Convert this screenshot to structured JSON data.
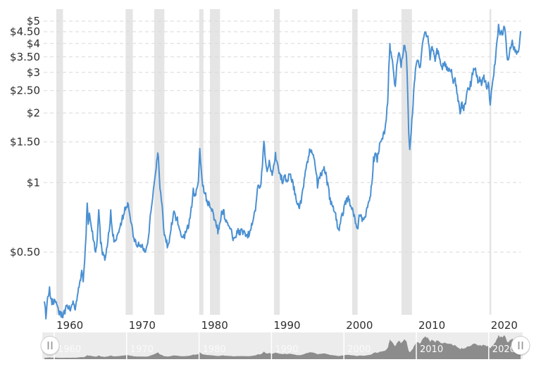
{
  "page": {
    "background": "#ffffff"
  },
  "colors": {
    "line": "#4a90d2",
    "recession_band": "#e5e5e5",
    "gridline": "#d9d9d9",
    "axis_text": "#2e2e2e",
    "navigator_background": "#ececec",
    "navigator_area": "#8c8c8c",
    "navigator_decade_line": "#ffffff",
    "navigator_label": "#fafafa",
    "handle_fill": "#ffffff",
    "handle_border": "#cccccc",
    "handle_glyph": "#9a9a9a"
  },
  "chart_data": {
    "type": "line",
    "title": "",
    "xlabel": "",
    "ylabel": "",
    "y_axis": {
      "scale": "log",
      "range": [
        0.26,
        5.3
      ],
      "tick_values": [
        5,
        4.5,
        4,
        3.5,
        3,
        2.5,
        2,
        1.5,
        1,
        0.5
      ],
      "tick_labels": [
        "$5",
        "$4.50",
        "$4",
        "$3.50",
        "$3",
        "$2.50",
        "$2",
        "$1.50",
        "$1",
        "$0.50"
      ]
    },
    "x_axis": {
      "range": [
        1958.2,
        2024.6
      ],
      "tick_values": [
        1960,
        1970,
        1980,
        1990,
        2000,
        2010,
        2020
      ],
      "tick_labels": [
        "1960",
        "1970",
        "1980",
        "1990",
        "2000",
        "2010",
        "2020"
      ]
    },
    "grid": true,
    "legend": "none",
    "recession_bands": [
      [
        1960.28,
        1961.2
      ],
      [
        1969.85,
        1970.85
      ],
      [
        1973.8,
        1975.2
      ],
      [
        1980.02,
        1980.6
      ],
      [
        1981.5,
        1982.9
      ],
      [
        1990.35,
        1991.15
      ],
      [
        2001.15,
        2001.9
      ],
      [
        2007.95,
        2009.4
      ],
      [
        2020.1,
        2020.35
      ]
    ],
    "series": [
      {
        "name": "price",
        "unit": "USD",
        "points": [
          [
            1958.65,
            0.3
          ],
          [
            1958.85,
            0.265
          ],
          [
            1959.1,
            0.32
          ],
          [
            1959.35,
            0.345
          ],
          [
            1959.6,
            0.31
          ],
          [
            1959.85,
            0.3
          ],
          [
            1960.1,
            0.31
          ],
          [
            1960.35,
            0.29
          ],
          [
            1960.6,
            0.275
          ],
          [
            1960.85,
            0.27
          ],
          [
            1961.1,
            0.265
          ],
          [
            1961.4,
            0.275
          ],
          [
            1961.7,
            0.29
          ],
          [
            1962.0,
            0.285
          ],
          [
            1962.3,
            0.28
          ],
          [
            1962.6,
            0.3
          ],
          [
            1962.9,
            0.285
          ],
          [
            1963.2,
            0.33
          ],
          [
            1963.5,
            0.37
          ],
          [
            1963.8,
            0.41
          ],
          [
            1964.0,
            0.385
          ],
          [
            1964.2,
            0.46
          ],
          [
            1964.4,
            0.6
          ],
          [
            1964.55,
            0.81
          ],
          [
            1964.7,
            0.68
          ],
          [
            1964.85,
            0.74
          ],
          [
            1965.0,
            0.66
          ],
          [
            1965.2,
            0.62
          ],
          [
            1965.45,
            0.55
          ],
          [
            1965.7,
            0.5
          ],
          [
            1965.95,
            0.57
          ],
          [
            1966.15,
            0.76
          ],
          [
            1966.4,
            0.56
          ],
          [
            1966.65,
            0.5
          ],
          [
            1966.9,
            0.47
          ],
          [
            1967.15,
            0.49
          ],
          [
            1967.4,
            0.56
          ],
          [
            1967.6,
            0.63
          ],
          [
            1967.8,
            0.74
          ],
          [
            1968.0,
            0.64
          ],
          [
            1968.25,
            0.545
          ],
          [
            1968.5,
            0.56
          ],
          [
            1968.75,
            0.59
          ],
          [
            1969.0,
            0.63
          ],
          [
            1969.25,
            0.67
          ],
          [
            1969.5,
            0.72
          ],
          [
            1969.75,
            0.77
          ],
          [
            1970.0,
            0.8
          ],
          [
            1970.15,
            0.82
          ],
          [
            1970.4,
            0.74
          ],
          [
            1970.65,
            0.66
          ],
          [
            1970.9,
            0.59
          ],
          [
            1971.15,
            0.55
          ],
          [
            1971.4,
            0.535
          ],
          [
            1971.65,
            0.56
          ],
          [
            1971.9,
            0.52
          ],
          [
            1972.15,
            0.545
          ],
          [
            1972.4,
            0.51
          ],
          [
            1972.65,
            0.52
          ],
          [
            1972.9,
            0.555
          ],
          [
            1973.1,
            0.62
          ],
          [
            1973.35,
            0.76
          ],
          [
            1973.6,
            0.88
          ],
          [
            1973.8,
            0.97
          ],
          [
            1974.0,
            1.1
          ],
          [
            1974.15,
            1.25
          ],
          [
            1974.3,
            1.38
          ],
          [
            1974.45,
            1.15
          ],
          [
            1974.6,
            0.97
          ],
          [
            1974.8,
            0.85
          ],
          [
            1975.0,
            0.7
          ],
          [
            1975.2,
            0.6
          ],
          [
            1975.45,
            0.555
          ],
          [
            1975.7,
            0.53
          ],
          [
            1975.95,
            0.57
          ],
          [
            1976.2,
            0.65
          ],
          [
            1976.45,
            0.72
          ],
          [
            1976.6,
            0.75
          ],
          [
            1976.8,
            0.68
          ],
          [
            1977.0,
            0.7
          ],
          [
            1977.25,
            0.64
          ],
          [
            1977.5,
            0.6
          ],
          [
            1977.75,
            0.575
          ],
          [
            1978.0,
            0.59
          ],
          [
            1978.25,
            0.625
          ],
          [
            1978.5,
            0.64
          ],
          [
            1978.75,
            0.7
          ],
          [
            1979.0,
            0.8
          ],
          [
            1979.2,
            0.92
          ],
          [
            1979.45,
            0.88
          ],
          [
            1979.7,
            0.93
          ],
          [
            1979.9,
            1.02
          ],
          [
            1980.1,
            1.38
          ],
          [
            1980.3,
            1.1
          ],
          [
            1980.5,
            0.96
          ],
          [
            1980.75,
            0.92
          ],
          [
            1981.0,
            0.85
          ],
          [
            1981.25,
            0.82
          ],
          [
            1981.5,
            0.79
          ],
          [
            1981.75,
            0.77
          ],
          [
            1982.0,
            0.72
          ],
          [
            1982.3,
            0.67
          ],
          [
            1982.6,
            0.62
          ],
          [
            1982.9,
            0.66
          ],
          [
            1983.1,
            0.73
          ],
          [
            1983.35,
            0.76
          ],
          [
            1983.6,
            0.7
          ],
          [
            1983.85,
            0.66
          ],
          [
            1984.1,
            0.64
          ],
          [
            1984.4,
            0.62
          ],
          [
            1984.7,
            0.57
          ],
          [
            1985.0,
            0.59
          ],
          [
            1985.3,
            0.62
          ],
          [
            1985.6,
            0.6
          ],
          [
            1985.9,
            0.63
          ],
          [
            1986.2,
            0.6
          ],
          [
            1986.5,
            0.58
          ],
          [
            1986.8,
            0.595
          ],
          [
            1987.1,
            0.62
          ],
          [
            1987.4,
            0.67
          ],
          [
            1987.7,
            0.74
          ],
          [
            1987.95,
            0.86
          ],
          [
            1988.15,
            1.0
          ],
          [
            1988.35,
            0.94
          ],
          [
            1988.55,
            1.02
          ],
          [
            1988.75,
            1.16
          ],
          [
            1988.95,
            1.52
          ],
          [
            1989.1,
            1.32
          ],
          [
            1989.3,
            1.18
          ],
          [
            1989.5,
            1.12
          ],
          [
            1989.7,
            1.26
          ],
          [
            1989.9,
            1.14
          ],
          [
            1990.1,
            1.08
          ],
          [
            1990.3,
            1.16
          ],
          [
            1990.55,
            1.32
          ],
          [
            1990.8,
            1.22
          ],
          [
            1991.05,
            1.1
          ],
          [
            1991.3,
            1.06
          ],
          [
            1991.55,
            1.0
          ],
          [
            1991.8,
            1.06
          ],
          [
            1992.05,
            1.02
          ],
          [
            1992.3,
            1.04
          ],
          [
            1992.55,
            1.12
          ],
          [
            1992.8,
            1.03
          ],
          [
            1993.05,
            0.96
          ],
          [
            1993.3,
            0.87
          ],
          [
            1993.55,
            0.82
          ],
          [
            1993.85,
            0.77
          ],
          [
            1994.1,
            0.84
          ],
          [
            1994.35,
            0.94
          ],
          [
            1994.6,
            1.05
          ],
          [
            1994.85,
            1.18
          ],
          [
            1995.1,
            1.3
          ],
          [
            1995.35,
            1.4
          ],
          [
            1995.6,
            1.36
          ],
          [
            1995.85,
            1.28
          ],
          [
            1996.1,
            1.16
          ],
          [
            1996.35,
            0.98
          ],
          [
            1996.6,
            1.04
          ],
          [
            1996.85,
            1.08
          ],
          [
            1997.1,
            1.12
          ],
          [
            1997.35,
            1.14
          ],
          [
            1997.6,
            1.04
          ],
          [
            1997.85,
            0.94
          ],
          [
            1998.1,
            0.84
          ],
          [
            1998.35,
            0.8
          ],
          [
            1998.6,
            0.76
          ],
          [
            1998.85,
            0.72
          ],
          [
            1999.1,
            0.65
          ],
          [
            1999.35,
            0.63
          ],
          [
            1999.6,
            0.68
          ],
          [
            1999.85,
            0.74
          ],
          [
            2000.1,
            0.8
          ],
          [
            2000.35,
            0.83
          ],
          [
            2000.6,
            0.85
          ],
          [
            2000.85,
            0.82
          ],
          [
            2001.1,
            0.78
          ],
          [
            2001.35,
            0.72
          ],
          [
            2001.6,
            0.67
          ],
          [
            2001.85,
            0.625
          ],
          [
            2002.1,
            0.7
          ],
          [
            2002.35,
            0.73
          ],
          [
            2002.6,
            0.68
          ],
          [
            2002.85,
            0.71
          ],
          [
            2003.1,
            0.75
          ],
          [
            2003.35,
            0.79
          ],
          [
            2003.6,
            0.85
          ],
          [
            2003.85,
            0.97
          ],
          [
            2004.1,
            1.25
          ],
          [
            2004.35,
            1.32
          ],
          [
            2004.6,
            1.25
          ],
          [
            2004.85,
            1.42
          ],
          [
            2005.1,
            1.48
          ],
          [
            2005.35,
            1.55
          ],
          [
            2005.6,
            1.68
          ],
          [
            2005.85,
            1.9
          ],
          [
            2006.05,
            2.25
          ],
          [
            2006.2,
            3.05
          ],
          [
            2006.35,
            3.95
          ],
          [
            2006.5,
            3.62
          ],
          [
            2006.7,
            3.45
          ],
          [
            2006.9,
            2.95
          ],
          [
            2007.1,
            2.56
          ],
          [
            2007.3,
            3.12
          ],
          [
            2007.5,
            3.62
          ],
          [
            2007.7,
            3.55
          ],
          [
            2007.9,
            3.25
          ],
          [
            2008.1,
            3.55
          ],
          [
            2008.3,
            3.92
          ],
          [
            2008.5,
            3.78
          ],
          [
            2008.65,
            3.4
          ],
          [
            2008.8,
            2.5
          ],
          [
            2008.95,
            1.65
          ],
          [
            2009.1,
            1.38
          ],
          [
            2009.3,
            1.7
          ],
          [
            2009.55,
            2.2
          ],
          [
            2009.8,
            2.85
          ],
          [
            2010.05,
            3.35
          ],
          [
            2010.25,
            3.45
          ],
          [
            2010.45,
            3.05
          ],
          [
            2010.65,
            3.4
          ],
          [
            2010.85,
            3.85
          ],
          [
            2011.05,
            4.35
          ],
          [
            2011.2,
            4.6
          ],
          [
            2011.4,
            4.25
          ],
          [
            2011.6,
            4.4
          ],
          [
            2011.75,
            3.95
          ],
          [
            2011.9,
            3.45
          ],
          [
            2012.1,
            3.75
          ],
          [
            2012.35,
            3.82
          ],
          [
            2012.6,
            3.45
          ],
          [
            2012.85,
            3.7
          ],
          [
            2013.1,
            3.65
          ],
          [
            2013.35,
            3.3
          ],
          [
            2013.6,
            3.15
          ],
          [
            2013.85,
            3.28
          ],
          [
            2014.1,
            3.2
          ],
          [
            2014.35,
            3.02
          ],
          [
            2014.6,
            3.12
          ],
          [
            2014.85,
            3.0
          ],
          [
            2015.1,
            2.68
          ],
          [
            2015.35,
            2.78
          ],
          [
            2015.6,
            2.46
          ],
          [
            2015.85,
            2.24
          ],
          [
            2016.05,
            2.02
          ],
          [
            2016.3,
            2.18
          ],
          [
            2016.55,
            2.12
          ],
          [
            2016.8,
            2.22
          ],
          [
            2017.05,
            2.6
          ],
          [
            2017.3,
            2.56
          ],
          [
            2017.55,
            2.7
          ],
          [
            2017.8,
            2.98
          ],
          [
            2018.0,
            3.2
          ],
          [
            2018.25,
            3.05
          ],
          [
            2018.5,
            2.72
          ],
          [
            2018.75,
            2.78
          ],
          [
            2019.0,
            2.66
          ],
          [
            2019.25,
            2.92
          ],
          [
            2019.5,
            2.7
          ],
          [
            2019.75,
            2.6
          ],
          [
            2019.95,
            2.8
          ],
          [
            2020.2,
            2.17
          ],
          [
            2020.45,
            2.55
          ],
          [
            2020.7,
            2.95
          ],
          [
            2020.95,
            3.5
          ],
          [
            2021.15,
            4.1
          ],
          [
            2021.35,
            4.68
          ],
          [
            2021.55,
            4.28
          ],
          [
            2021.75,
            4.45
          ],
          [
            2021.95,
            4.35
          ],
          [
            2022.1,
            4.9
          ],
          [
            2022.3,
            4.55
          ],
          [
            2022.5,
            3.55
          ],
          [
            2022.65,
            3.4
          ],
          [
            2022.85,
            3.65
          ],
          [
            2023.05,
            3.85
          ],
          [
            2023.25,
            4.0
          ],
          [
            2023.45,
            3.8
          ],
          [
            2023.65,
            3.72
          ],
          [
            2023.85,
            3.58
          ],
          [
            2024.05,
            3.65
          ],
          [
            2024.2,
            3.85
          ],
          [
            2024.4,
            4.5
          ]
        ]
      }
    ],
    "navigator": {
      "tick_labels": [
        "1960",
        "1970",
        "1980",
        "1990",
        "2000",
        "2010",
        "2020"
      ],
      "tick_values": [
        1960,
        1970,
        1980,
        1990,
        2000,
        2010,
        2020
      ],
      "handle_glyph": "||"
    }
  }
}
